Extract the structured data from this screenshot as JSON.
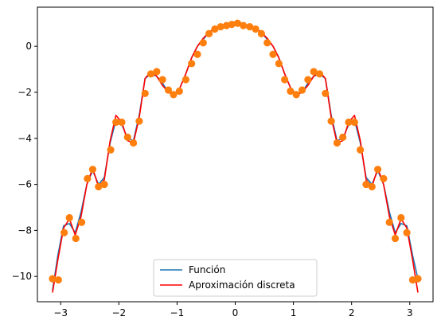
{
  "chart_data": {
    "type": "line",
    "title": "",
    "xlabel": "",
    "ylabel": "",
    "xlim": [
      -3.4,
      3.4
    ],
    "ylim": [
      -11.1,
      1.7
    ],
    "x_ticks": [
      -3,
      -2,
      -1,
      0,
      1,
      2,
      3
    ],
    "x_tick_labels": [
      "−3",
      "−2",
      "−1",
      "0",
      "1",
      "2",
      "3"
    ],
    "y_ticks": [
      0,
      -2,
      -4,
      -6,
      -8,
      -10
    ],
    "y_tick_labels": [
      "0",
      "−2",
      "−4",
      "−6",
      "−8",
      "−10"
    ],
    "grid": false,
    "legend": {
      "placement": "lower-center",
      "entries": [
        {
          "label": "Función",
          "color": "#1f77b4"
        },
        {
          "label": "Aproximación discreta",
          "color": "#ff0000"
        }
      ]
    },
    "series": [
      {
        "name": "Función",
        "color": "#1f77b4",
        "x": [
          -3.14,
          -3.05,
          -2.95,
          -2.85,
          -2.75,
          -2.65,
          -2.55,
          -2.45,
          -2.35,
          -2.25,
          -2.15,
          -2.05,
          -1.95,
          -1.85,
          -1.75,
          -1.65,
          -1.55,
          -1.45,
          -1.35,
          -1.25,
          -1.15,
          -1.05,
          -0.95,
          -0.85,
          -0.75,
          -0.65,
          -0.55,
          -0.45,
          -0.35,
          -0.25,
          -0.15,
          -0.05,
          0.05,
          0.15,
          0.25,
          0.35,
          0.45,
          0.55,
          0.65,
          0.75,
          0.85,
          0.95,
          1.05,
          1.15,
          1.25,
          1.35,
          1.45,
          1.55,
          1.65,
          1.75,
          1.85,
          1.95,
          2.05,
          2.15,
          2.25,
          2.35,
          2.45,
          2.55,
          2.65,
          2.75,
          2.85,
          2.95,
          3.05,
          3.14
        ],
        "y": [
          -10.6,
          -9.1,
          -7.8,
          -7.7,
          -8.1,
          -7.2,
          -6.0,
          -5.4,
          -6.0,
          -5.7,
          -4.2,
          -3.2,
          -3.4,
          -4.0,
          -4.1,
          -3.0,
          -1.4,
          -1.2,
          -1.3,
          -1.6,
          -2.0,
          -2.1,
          -1.8,
          -1.2,
          -0.5,
          0.0,
          0.3,
          0.6,
          0.8,
          0.9,
          0.95,
          1.0,
          1.0,
          0.95,
          0.9,
          0.8,
          0.6,
          0.3,
          0.0,
          -0.5,
          -1.2,
          -1.8,
          -2.1,
          -2.0,
          -1.6,
          -1.3,
          -1.2,
          -1.4,
          -3.0,
          -4.1,
          -4.0,
          -3.4,
          -3.2,
          -4.2,
          -5.7,
          -6.0,
          -5.4,
          -6.0,
          -7.2,
          -8.1,
          -7.7,
          -7.8,
          -9.1,
          -10.1
        ]
      },
      {
        "name": "Aproximación discreta",
        "color": "#ff0000",
        "x": [
          -3.14,
          -3.05,
          -2.95,
          -2.85,
          -2.75,
          -2.65,
          -2.55,
          -2.45,
          -2.35,
          -2.25,
          -2.15,
          -2.05,
          -1.95,
          -1.85,
          -1.75,
          -1.65,
          -1.55,
          -1.45,
          -1.35,
          -1.25,
          -1.15,
          -1.05,
          -0.95,
          -0.85,
          -0.75,
          -0.65,
          -0.55,
          -0.45,
          -0.35,
          -0.25,
          -0.15,
          -0.05,
          0.05,
          0.15,
          0.25,
          0.35,
          0.45,
          0.55,
          0.65,
          0.75,
          0.85,
          0.95,
          1.05,
          1.15,
          1.25,
          1.35,
          1.45,
          1.55,
          1.65,
          1.75,
          1.85,
          1.95,
          2.05,
          2.15,
          2.25,
          2.35,
          2.45,
          2.55,
          2.65,
          2.75,
          2.85,
          2.95,
          3.05,
          3.14
        ],
        "y": [
          -10.7,
          -9.3,
          -7.9,
          -7.5,
          -8.2,
          -7.4,
          -6.0,
          -5.3,
          -6.1,
          -5.8,
          -4.1,
          -3.0,
          -3.3,
          -4.1,
          -4.2,
          -3.1,
          -1.4,
          -1.1,
          -1.3,
          -1.7,
          -2.0,
          -2.1,
          -1.8,
          -1.2,
          -0.5,
          0.0,
          0.35,
          0.6,
          0.8,
          0.9,
          0.95,
          1.05,
          1.05,
          0.95,
          0.9,
          0.8,
          0.6,
          0.35,
          0.0,
          -0.5,
          -1.2,
          -1.8,
          -2.1,
          -2.0,
          -1.7,
          -1.3,
          -1.1,
          -1.4,
          -3.1,
          -4.2,
          -4.1,
          -3.3,
          -3.0,
          -4.1,
          -5.8,
          -6.1,
          -5.3,
          -6.0,
          -7.4,
          -8.2,
          -7.5,
          -7.9,
          -9.3,
          -10.7
        ]
      },
      {
        "color": "#ff7f0e",
        "marker": "circle",
        "x": [
          -3.14,
          -3.04,
          -2.94,
          -2.85,
          -2.74,
          -2.64,
          -2.54,
          -2.45,
          -2.35,
          -2.25,
          -2.14,
          -2.05,
          -1.95,
          -1.85,
          -1.75,
          -1.65,
          -1.55,
          -1.45,
          -1.35,
          -1.25,
          -1.15,
          -1.06,
          -0.96,
          -0.85,
          -0.75,
          -0.65,
          -0.55,
          -0.45,
          -0.35,
          -0.25,
          -0.15,
          -0.06,
          0.04,
          0.14,
          0.25,
          0.35,
          0.45,
          0.55,
          0.65,
          0.75,
          0.85,
          0.95,
          1.05,
          1.15,
          1.25,
          1.35,
          1.45,
          1.55,
          1.65,
          1.75,
          1.85,
          1.95,
          2.05,
          2.15,
          2.25,
          2.35,
          2.45,
          2.55,
          2.65,
          2.75,
          2.85,
          2.95,
          3.05,
          3.14
        ],
        "y": [
          -10.1,
          -10.15,
          -8.1,
          -7.45,
          -8.35,
          -7.65,
          -5.75,
          -5.35,
          -6.1,
          -6.0,
          -4.5,
          -3.3,
          -3.3,
          -3.95,
          -4.2,
          -3.25,
          -2.05,
          -1.2,
          -1.1,
          -1.45,
          -1.9,
          -2.1,
          -1.95,
          -1.45,
          -0.75,
          -0.35,
          0.15,
          0.55,
          0.75,
          0.85,
          0.9,
          0.95,
          1.0,
          0.9,
          0.85,
          0.75,
          0.55,
          0.15,
          -0.35,
          -0.75,
          -1.45,
          -1.95,
          -2.1,
          -1.9,
          -1.45,
          -1.1,
          -1.2,
          -2.05,
          -3.25,
          -4.2,
          -3.95,
          -3.3,
          -3.3,
          -4.5,
          -6.0,
          -6.1,
          -5.35,
          -5.75,
          -7.65,
          -8.35,
          -7.45,
          -8.1,
          -10.15,
          -10.1
        ]
      }
    ]
  }
}
